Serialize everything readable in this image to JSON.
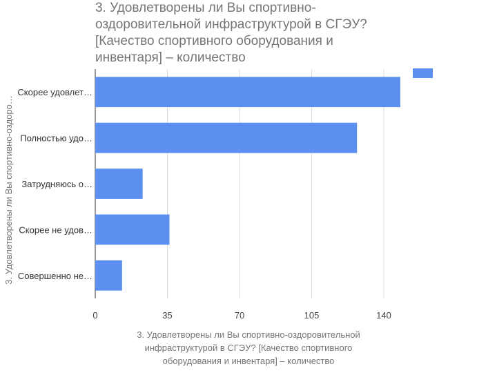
{
  "chart_data": {
    "type": "bar",
    "orientation": "horizontal",
    "title": "3. Удовлетворены ли Вы спортивно-\nоздоровительной инфраструктурой в СГЭУ?\n[Качество спортивного оборудования и\nинвентаря] – количество",
    "categories": [
      "Скорее удовлет…",
      "Полностью удо…",
      "Затрудняюсь о…",
      "Скорее не удов…",
      "Совершенно не…"
    ],
    "series": [
      {
        "values": [
          148,
          127,
          23,
          36,
          13
        ]
      }
    ],
    "xlabel": "3. Удовлетворены ли Вы спортивно-оздоровительной\nинфраструктурой в СГЭУ? [Качество спортивного\nоборудования и инвентаря] – количество",
    "ylabel": "3. Удовлетворены ли Вы спортивно-оздоро…",
    "xlim": [
      0,
      160
    ],
    "xticks": [
      0,
      35,
      70,
      105,
      140
    ],
    "grid": true,
    "legend": "top-right",
    "bar_color": "#5b8ff0",
    "grid_color": "#dcdcdc"
  }
}
